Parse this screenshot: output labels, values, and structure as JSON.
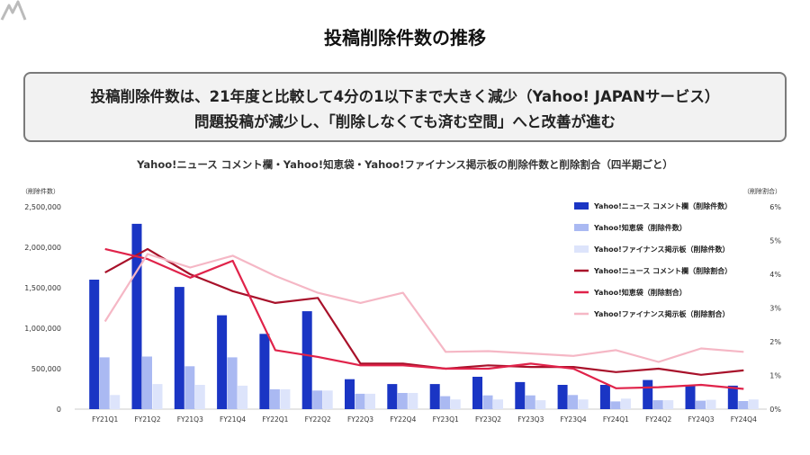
{
  "page": {
    "title": "投稿削除件数の推移",
    "highlight": [
      "投稿削除件数は、21年度と比較して4分の1以下まで大きく減少（Yahoo! JAPANサービス）",
      "問題投稿が減少し、「削除しなくても済む空間」へと改善が進む"
    ]
  },
  "chart_data": {
    "type": "bar",
    "title": "Yahoo!ニュース コメント欄・Yahoo!知恵袋・Yahoo!ファイナンス掲示板の削除件数と削除割合（四半期ごと）",
    "left_axis_label": "（削除件数）",
    "right_axis_label": "（削除割合）",
    "categories": [
      "FY21Q1",
      "FY21Q2",
      "FY21Q3",
      "FY21Q4",
      "FY22Q1",
      "FY22Q2",
      "FY22Q3",
      "FY22Q4",
      "FY23Q1",
      "FY23Q2",
      "FY23Q3",
      "FY23Q4",
      "FY24Q1",
      "FY24Q2",
      "FY24Q3",
      "FY24Q4"
    ],
    "ylim_left": [
      0,
      2500000
    ],
    "yticks_left": [
      "0",
      "500,000",
      "1,000,000",
      "1,500,000",
      "2,000,000",
      "2,500,000"
    ],
    "ylim_right": [
      0,
      6
    ],
    "yticks_right": [
      "0%",
      "1%",
      "2%",
      "3%",
      "4%",
      "5%",
      "6%"
    ],
    "bar_series": [
      {
        "name": "Yahoo!ニュース コメント欄（削除件数）",
        "color": "#1a35c4",
        "values": [
          1600000,
          2290000,
          1510000,
          1160000,
          930000,
          1210000,
          370000,
          310000,
          310000,
          400000,
          335000,
          300000,
          300000,
          360000,
          290000,
          290000
        ]
      },
      {
        "name": "Yahoo!知恵袋（削除件数）",
        "color": "#aab9f2",
        "values": [
          640000,
          650000,
          530000,
          640000,
          245000,
          230000,
          190000,
          200000,
          160000,
          170000,
          170000,
          175000,
          95000,
          110000,
          105000,
          100000
        ]
      },
      {
        "name": "Yahoo!ファイナンス掲示板（削除件数）",
        "color": "#dde4fb",
        "values": [
          175000,
          310000,
          300000,
          290000,
          245000,
          230000,
          190000,
          200000,
          120000,
          120000,
          110000,
          120000,
          130000,
          110000,
          115000,
          120000
        ]
      }
    ],
    "line_series": [
      {
        "name": "Yahoo!ニュース コメント欄（削除割合）",
        "color": "#a8112a",
        "values": [
          4.05,
          4.75,
          4.0,
          3.5,
          3.15,
          3.3,
          1.35,
          1.35,
          1.2,
          1.3,
          1.25,
          1.25,
          1.1,
          1.2,
          1.02,
          1.15
        ]
      },
      {
        "name": "Yahoo!知恵袋（削除割合）",
        "color": "#e0234a",
        "values": [
          4.75,
          4.45,
          3.9,
          4.4,
          1.75,
          1.55,
          1.3,
          1.3,
          1.2,
          1.2,
          1.35,
          1.2,
          0.62,
          0.65,
          0.72,
          0.6
        ]
      },
      {
        "name": "Yahoo!ファイナンス掲示板（削除割合）",
        "color": "#f5b7c5",
        "values": [
          2.6,
          4.6,
          4.2,
          4.55,
          3.95,
          3.45,
          3.15,
          3.45,
          1.7,
          1.72,
          1.65,
          1.58,
          1.75,
          1.4,
          1.8,
          1.7
        ]
      }
    ],
    "grid": false,
    "legend_position": "right"
  }
}
